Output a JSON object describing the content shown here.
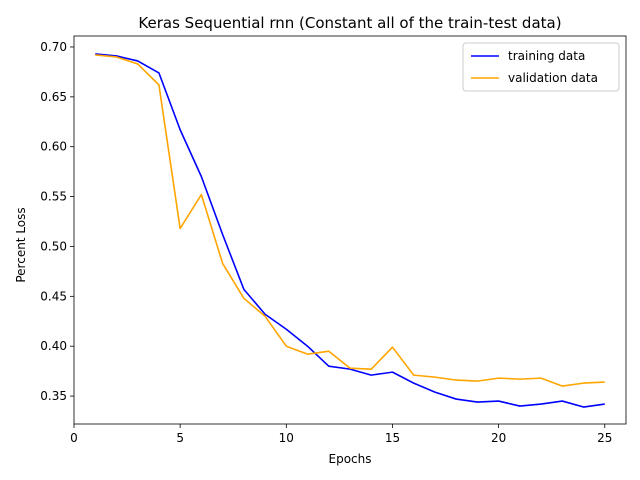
{
  "chart_data": {
    "type": "line",
    "title": "Keras Sequential rnn (Constant all of the train-test data)",
    "xlabel": "Epochs",
    "ylabel": "Percent Loss",
    "xlim": [
      0,
      26
    ],
    "ylim": [
      0.322,
      0.711
    ],
    "xticks": [
      0,
      5,
      10,
      15,
      20,
      25
    ],
    "yticks": [
      0.35,
      0.4,
      0.45,
      0.5,
      0.55,
      0.6,
      0.65,
      0.7
    ],
    "xtick_labels": [
      "0",
      "5",
      "10",
      "15",
      "20",
      "25"
    ],
    "ytick_labels": [
      "0.35",
      "0.40",
      "0.45",
      "0.50",
      "0.55",
      "0.60",
      "0.65",
      "0.70"
    ],
    "grid": false,
    "legend_position": "top-right",
    "x": [
      1,
      2,
      3,
      4,
      5,
      6,
      7,
      8,
      9,
      10,
      11,
      12,
      13,
      14,
      15,
      16,
      17,
      18,
      19,
      20,
      21,
      22,
      23,
      24,
      25
    ],
    "series": [
      {
        "name": "training data",
        "color": "#0000ff",
        "values": [
          0.693,
          0.691,
          0.686,
          0.674,
          0.617,
          0.57,
          0.512,
          0.457,
          0.432,
          0.417,
          0.4,
          0.38,
          0.377,
          0.371,
          0.374,
          0.363,
          0.354,
          0.347,
          0.344,
          0.345,
          0.34,
          0.342,
          0.345,
          0.339,
          0.342
        ]
      },
      {
        "name": "validation data",
        "color": "#ffa500",
        "values": [
          0.692,
          0.69,
          0.683,
          0.662,
          0.518,
          0.552,
          0.483,
          0.448,
          0.43,
          0.4,
          0.392,
          0.395,
          0.378,
          0.377,
          0.399,
          0.371,
          0.369,
          0.366,
          0.365,
          0.368,
          0.367,
          0.368,
          0.36,
          0.363,
          0.364
        ]
      }
    ]
  }
}
